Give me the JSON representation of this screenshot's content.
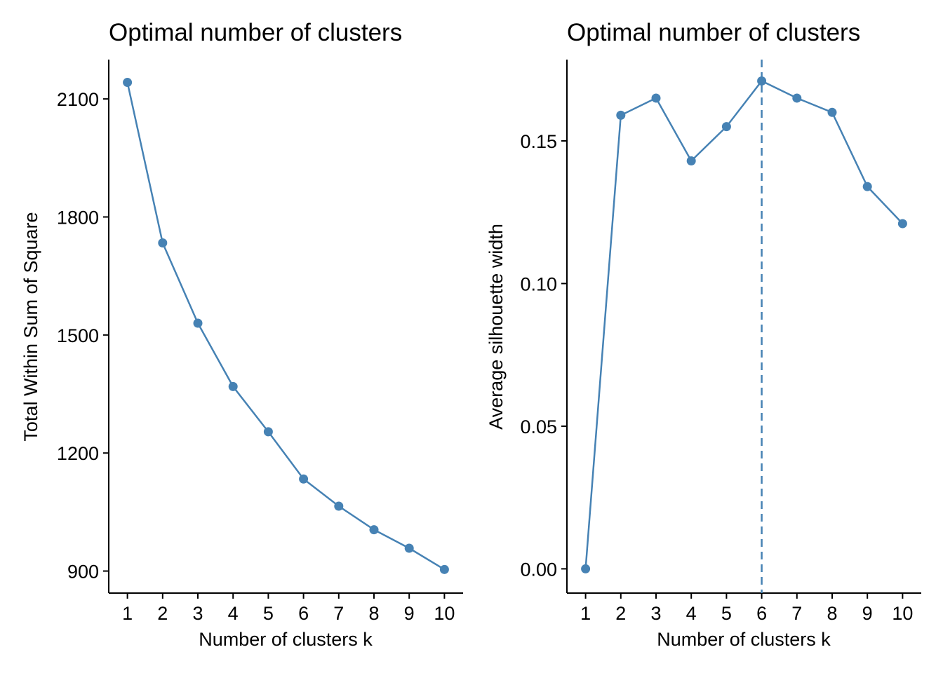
{
  "colors": {
    "series": "#4682b4",
    "axis": "#000000",
    "background": "#ffffff"
  },
  "chart_data": [
    {
      "type": "line",
      "title": "Optimal number of clusters",
      "xlabel": "Number of clusters k",
      "ylabel": "Total Within Sum of Square",
      "x_ticks": [
        "1",
        "2",
        "3",
        "4",
        "5",
        "6",
        "7",
        "8",
        "9",
        "10"
      ],
      "y_ticks": [
        "900",
        "1200",
        "1500",
        "1800",
        "2100"
      ],
      "xlim": [
        0.47,
        10.53
      ],
      "ylim": [
        844,
        2200
      ],
      "grid": false,
      "series": [
        {
          "x": [
            1,
            2,
            3,
            4,
            5,
            6,
            7,
            8,
            9,
            10
          ],
          "values": [
            2142,
            1734,
            1530,
            1369,
            1254,
            1134,
            1065,
            1005,
            958,
            904
          ]
        }
      ]
    },
    {
      "type": "line",
      "title": "Optimal number of clusters",
      "xlabel": "Number of clusters k",
      "ylabel": "Average silhouette width",
      "x_ticks": [
        "1",
        "2",
        "3",
        "4",
        "5",
        "6",
        "7",
        "8",
        "9",
        "10"
      ],
      "y_ticks": [
        "0.00",
        "0.05",
        "0.10",
        "0.15"
      ],
      "xlim": [
        0.47,
        10.53
      ],
      "ylim": [
        -0.0085,
        0.1785
      ],
      "grid": false,
      "vline": {
        "x": 6,
        "style": "dashed"
      },
      "series": [
        {
          "x": [
            1,
            2,
            3,
            4,
            5,
            6,
            7,
            8,
            9,
            10
          ],
          "values": [
            0.0,
            0.159,
            0.165,
            0.143,
            0.155,
            0.171,
            0.165,
            0.16,
            0.134,
            0.121
          ]
        }
      ]
    }
  ]
}
